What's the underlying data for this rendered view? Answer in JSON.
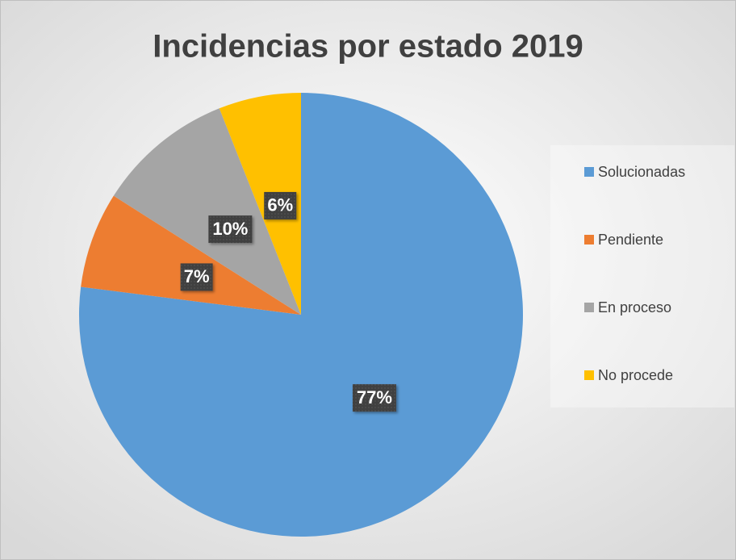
{
  "chart_data": {
    "type": "pie",
    "title": "Incidencias por estado 2019",
    "categories": [
      "Solucionadas",
      "Pendiente",
      "En proceso",
      "No procede"
    ],
    "values": [
      77,
      7,
      10,
      6
    ],
    "value_labels": [
      "77%",
      "7%",
      "10%",
      "6%"
    ],
    "colors": [
      "#5b9bd5",
      "#ed7d31",
      "#a5a5a5",
      "#ffc000"
    ],
    "legend": "right"
  }
}
